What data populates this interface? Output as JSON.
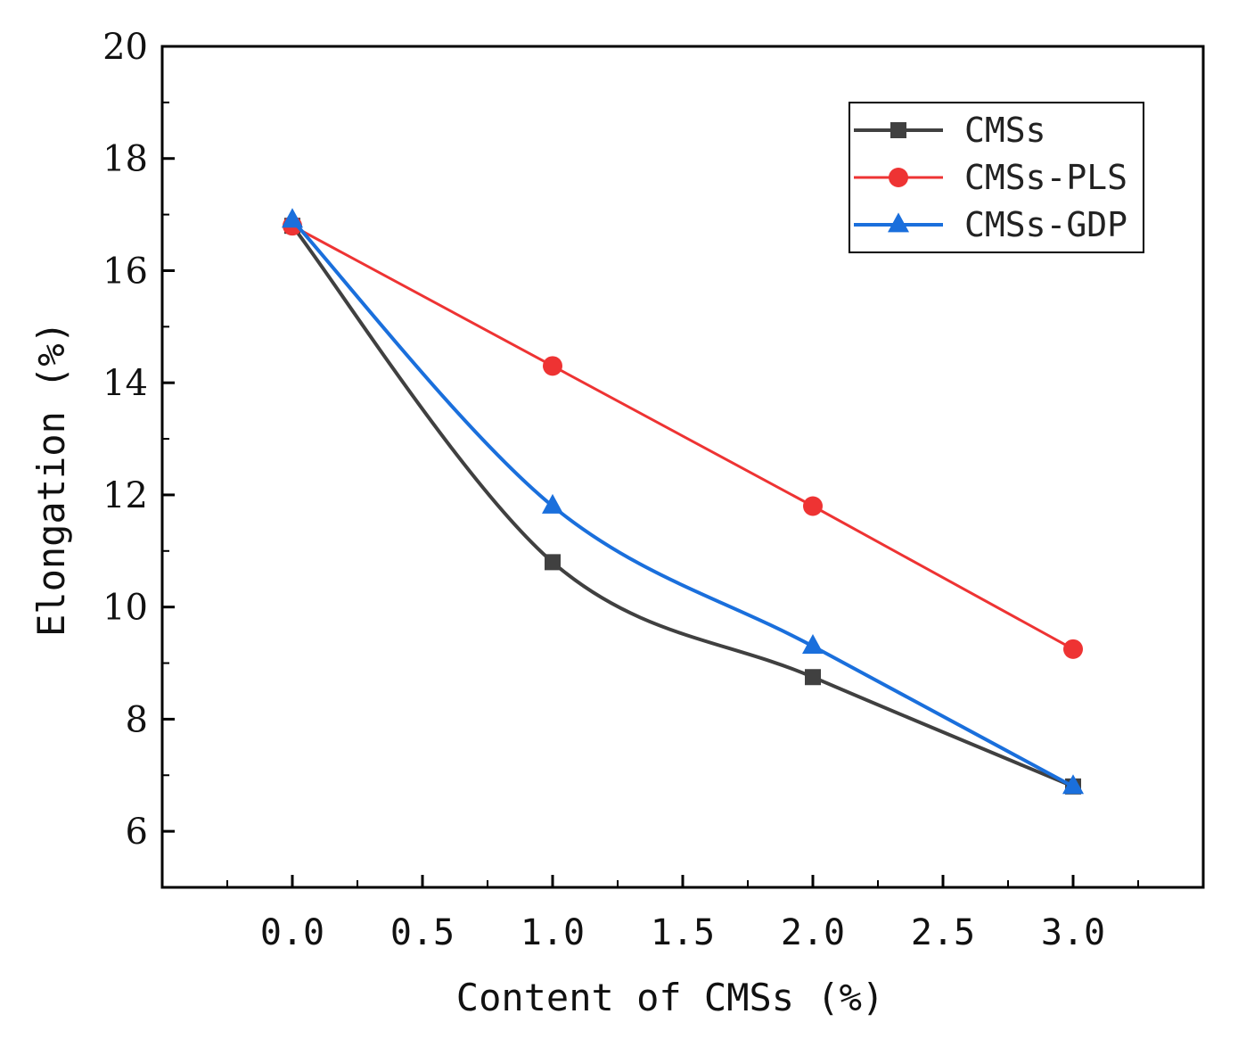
{
  "chart_data": {
    "type": "line",
    "title": "",
    "xlabel": "Content of CMSs (%)",
    "ylabel": "Elongation (%)",
    "xlim": [
      -0.5,
      3.5
    ],
    "ylim": [
      5,
      20
    ],
    "x_ticks": [
      "0.0",
      "0.5",
      "1.0",
      "1.5",
      "2.0",
      "2.5",
      "3.0"
    ],
    "y_ticks": [
      "6",
      "8",
      "10",
      "12",
      "14",
      "16",
      "18",
      "20"
    ],
    "grid": false,
    "legend_position": "top-right",
    "x": [
      0,
      1,
      2,
      3
    ],
    "series": [
      {
        "name": "CMSs",
        "color": "#404040",
        "marker": "square",
        "smooth": true,
        "values": [
          16.8,
          10.8,
          8.75,
          6.8
        ]
      },
      {
        "name": "CMSs-PLS",
        "color": "#ee3333",
        "marker": "circle",
        "smooth": false,
        "values": [
          16.8,
          14.3,
          11.8,
          9.25
        ]
      },
      {
        "name": "CMSs-GDP",
        "color": "#1a6fdc",
        "marker": "triangle",
        "smooth": true,
        "values": [
          16.9,
          11.8,
          9.3,
          6.8
        ]
      }
    ]
  }
}
